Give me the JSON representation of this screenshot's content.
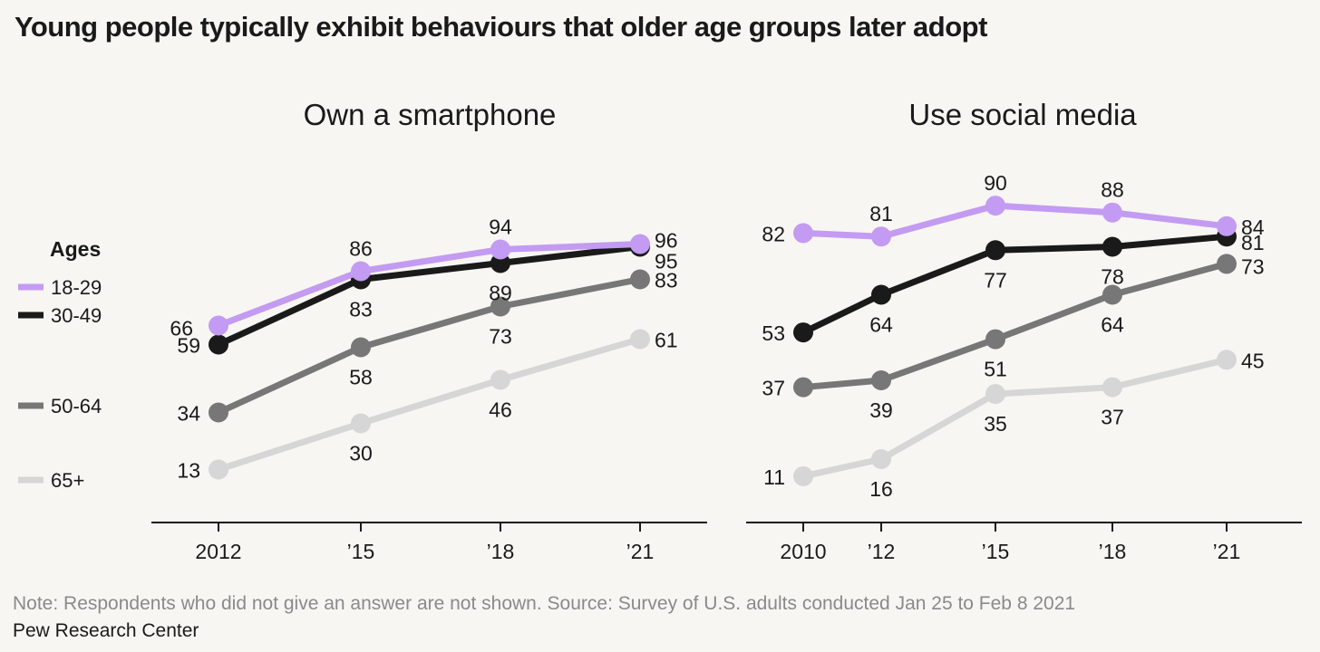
{
  "title": "Young people typically exhibit behaviours that older age groups later adopt",
  "legend": {
    "title": "Ages",
    "items": [
      {
        "label": "18-29",
        "color": "#c39bf2"
      },
      {
        "label": "30-49",
        "color": "#1a1a1a"
      },
      {
        "label": "50-64",
        "color": "#777777"
      },
      {
        "label": "65+",
        "color": "#d6d6d6"
      }
    ]
  },
  "note": "Note: Respondents who did not give an answer are not shown. Source: Survey of U.S. adults conducted Jan 25 to Feb 8 2021",
  "source": "Pew Research Center",
  "chart_data": [
    {
      "type": "line",
      "title": "Own a smartphone",
      "x": [
        2012,
        2015,
        2018,
        2021
      ],
      "tick_labels": [
        "2012",
        "’15",
        "’18",
        "’21"
      ],
      "series": [
        {
          "name": "18-29",
          "values": [
            66,
            86,
            94,
            96
          ]
        },
        {
          "name": "30-49",
          "values": [
            59,
            83,
            89,
            95
          ]
        },
        {
          "name": "50-64",
          "values": [
            34,
            58,
            73,
            83
          ]
        },
        {
          "name": "65+",
          "values": [
            13,
            30,
            46,
            61
          ]
        }
      ]
    },
    {
      "type": "line",
      "title": "Use social media",
      "x": [
        2010,
        2012,
        2015,
        2018,
        2021
      ],
      "tick_labels": [
        "2010",
        "’12",
        "’15",
        "’18",
        "’21"
      ],
      "series": [
        {
          "name": "18-29",
          "values": [
            82,
            81,
            90,
            88,
            84
          ]
        },
        {
          "name": "30-49",
          "values": [
            53,
            64,
            77,
            78,
            81
          ]
        },
        {
          "name": "50-64",
          "values": [
            37,
            39,
            51,
            64,
            73
          ]
        },
        {
          "name": "65+",
          "values": [
            11,
            16,
            35,
            37,
            45
          ]
        }
      ]
    }
  ]
}
